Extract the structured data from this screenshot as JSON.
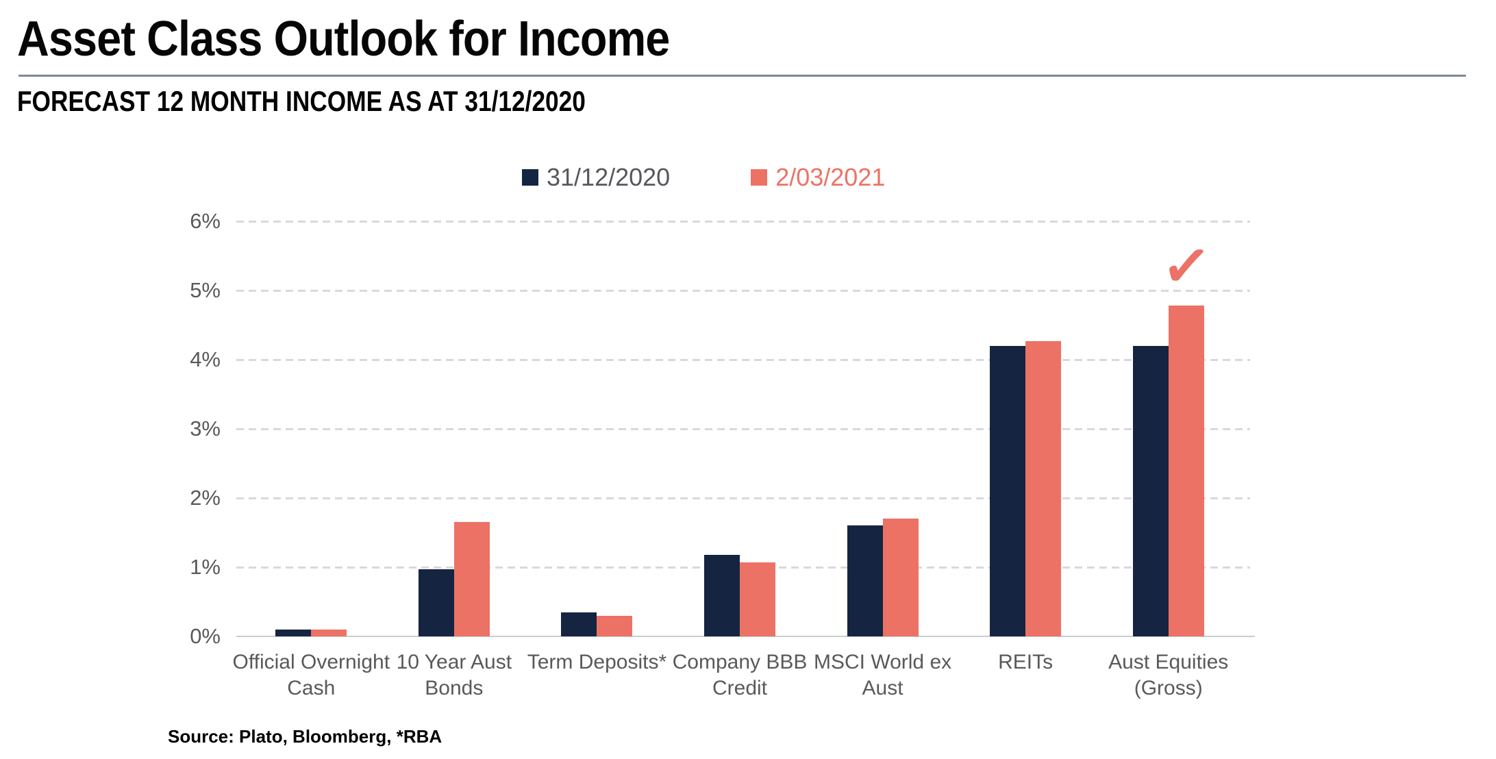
{
  "header": {
    "title": "Asset Class Outlook for Income",
    "subtitle": "FORECAST 12 MONTH INCOME AS AT 31/12/2020"
  },
  "legend": {
    "items": [
      {
        "label": "31/12/2020",
        "color": "#152440",
        "text_color": "#55575c"
      },
      {
        "label": "2/03/2021",
        "color": "#ec7265",
        "text_color": "#ec7265"
      }
    ]
  },
  "source": "Source: Plato, Bloomberg, *RBA",
  "colors": {
    "series_2020": "#152440",
    "series_2021": "#ec7265",
    "gridline": "#d9d9d9",
    "axis_text": "#595959",
    "divider": "#7d8894"
  },
  "chart_data": {
    "type": "bar",
    "title": "Asset Class Outlook for Income",
    "subtitle": "FORECAST 12 MONTH INCOME AS AT 31/12/2020",
    "categories": [
      "Official Overnight Cash",
      "10 Year Aust Bonds",
      "Term Deposits*",
      "Company BBB Credit",
      "MSCI World ex Aust",
      "REITs",
      "Aust Equities (Gross)"
    ],
    "series": [
      {
        "name": "31/12/2020",
        "color": "#152440",
        "values": [
          0.1,
          0.97,
          0.35,
          1.18,
          1.6,
          4.2,
          4.2
        ]
      },
      {
        "name": "2/03/2021",
        "color": "#ec7265",
        "values": [
          0.1,
          1.65,
          0.3,
          1.07,
          1.7,
          4.27,
          4.78
        ]
      }
    ],
    "xlabel": "",
    "ylabel": "",
    "ylim": [
      0,
      6
    ],
    "ytick_labels": [
      "0%",
      "1%",
      "2%",
      "3%",
      "4%",
      "5%",
      "6%"
    ],
    "grid": "horizontal-dashed",
    "legend_position": "top-center",
    "annotations": [
      {
        "type": "checkmark",
        "text": "✓",
        "category": "Aust Equities (Gross)",
        "series": "2/03/2021",
        "color": "#ec7265"
      }
    ]
  }
}
